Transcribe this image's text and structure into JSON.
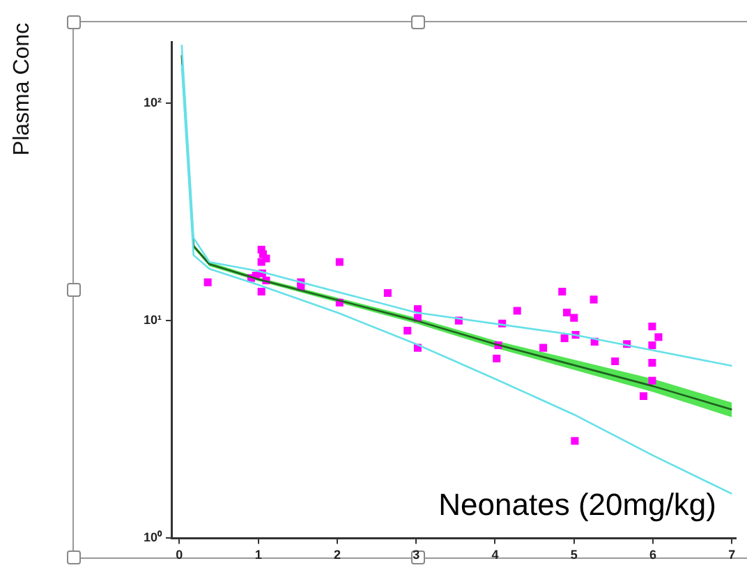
{
  "chart_data": {
    "type": "line",
    "ylabel": "Plasma Conc",
    "annotations": [
      "Neonates (20mg/kg)"
    ],
    "log": "y",
    "grid": false,
    "legend": false,
    "xlim": [
      -0.1,
      7.05
    ],
    "ylim": [
      1,
      190
    ],
    "xticks": [
      0,
      1,
      2,
      3,
      4,
      5,
      6,
      7
    ],
    "yticks": [
      {
        "value": 1,
        "label": "10⁰"
      },
      {
        "value": 10,
        "label": "10¹"
      },
      {
        "value": 100,
        "label": "10²"
      }
    ],
    "series": [
      {
        "color": "#66e0e8",
        "marker": "none",
        "x": [
          0.03,
          0.18,
          0.38,
          1,
          3,
          5,
          7
        ],
        "values": [
          185,
          24,
          18.6,
          16.9,
          10.9,
          8.6,
          6.2
        ]
      },
      {
        "color": "#66e0e8",
        "marker": "none",
        "x": [
          0.03,
          0.18,
          0.38,
          1,
          2,
          3,
          4,
          5,
          6,
          7
        ],
        "values": [
          150,
          20,
          17.3,
          14.6,
          10.9,
          7.8,
          5.4,
          3.7,
          2.4,
          1.6
        ]
      },
      {
        "color": "#1f5f1f",
        "marker": "none",
        "x": [
          0.03,
          0.18,
          0.38,
          1,
          3,
          4,
          6,
          7
        ],
        "values": [
          166,
          22,
          18.2,
          15.5,
          10.0,
          7.8,
          5.0,
          3.9
        ],
        "lower": [
          160,
          21.5,
          17.8,
          15.2,
          9.7,
          7.5,
          4.7,
          3.6
        ],
        "upper": [
          172,
          22.5,
          18.6,
          15.8,
          10.3,
          8.1,
          5.4,
          4.2
        ]
      },
      {
        "type": "scatter",
        "color": "#ff00ff",
        "marker": "square",
        "x": [
          0.36,
          1.04,
          1.06,
          1.1,
          1.04,
          0.91,
          0.97,
          1.05,
          1.1,
          1.04,
          1.54,
          1.54,
          2.03,
          2.03,
          2.64,
          3.02,
          3.02,
          2.89,
          3.02,
          3.54,
          4.09,
          4.28,
          4.04,
          4.02,
          4.61,
          4.85,
          4.91,
          5.0,
          5.02,
          4.88,
          5.25,
          5.26,
          5.67,
          5.52,
          5.99,
          6.07,
          5.99,
          5.99,
          5.99,
          5.88,
          5.01
        ],
        "values": [
          15.0,
          21.2,
          20.2,
          19.3,
          18.6,
          15.7,
          16.1,
          16.5,
          15.3,
          13.6,
          15.0,
          14.3,
          18.6,
          12.1,
          13.4,
          11.3,
          10.3,
          9.0,
          7.5,
          10.0,
          9.7,
          11.1,
          7.7,
          6.7,
          7.5,
          13.6,
          10.9,
          10.3,
          8.6,
          8.3,
          12.5,
          8.0,
          7.8,
          6.5,
          9.4,
          8.4,
          7.7,
          6.4,
          5.3,
          4.5,
          2.8
        ]
      }
    ]
  }
}
